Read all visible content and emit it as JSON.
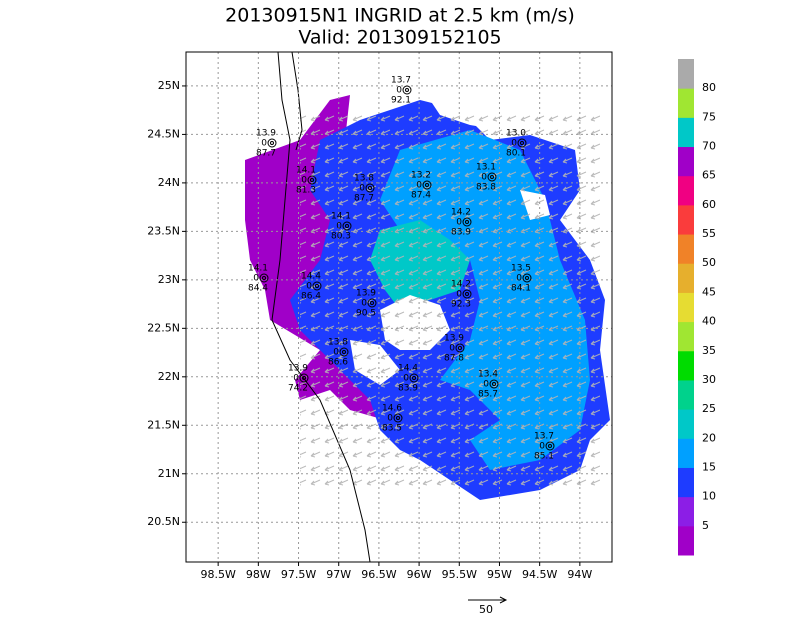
{
  "chart_data": {
    "type": "map",
    "title": "20130915N1 INGRID at 2.5 km (m/s)",
    "subtitle": "Valid: 201309152105",
    "xlim": [
      -98.9,
      -93.6
    ],
    "ylim": [
      20.09,
      25.35
    ],
    "xticks": [
      {
        "value": -98.5,
        "label": "98.5W"
      },
      {
        "value": -98,
        "label": "98W"
      },
      {
        "value": -97.5,
        "label": "97.5W"
      },
      {
        "value": -97,
        "label": "97W"
      },
      {
        "value": -96.5,
        "label": "96.5W"
      },
      {
        "value": -96,
        "label": "96W"
      },
      {
        "value": -95.5,
        "label": "95.5W"
      },
      {
        "value": -95,
        "label": "95W"
      },
      {
        "value": -94.5,
        "label": "94.5W"
      },
      {
        "value": -94,
        "label": "94W"
      }
    ],
    "yticks": [
      {
        "value": 20.5,
        "label": "20.5N"
      },
      {
        "value": 21,
        "label": "21N"
      },
      {
        "value": 21.5,
        "label": "21.5N"
      },
      {
        "value": 22,
        "label": "22N"
      },
      {
        "value": 22.5,
        "label": "22.5N"
      },
      {
        "value": 23,
        "label": "23N"
      },
      {
        "value": 23.5,
        "label": "23.5N"
      },
      {
        "value": 24,
        "label": "24N"
      },
      {
        "value": 24.5,
        "label": "24.5N"
      },
      {
        "value": 25,
        "label": "25N"
      }
    ],
    "grid": true,
    "colorbar": {
      "ticks": [
        5,
        10,
        15,
        20,
        25,
        30,
        35,
        40,
        45,
        50,
        55,
        60,
        65,
        70,
        75,
        80
      ],
      "colors": [
        "#a000c8",
        "#8c1ee6",
        "#1e3cff",
        "#00a0ff",
        "#00c8c8",
        "#00d28c",
        "#00dc00",
        "#a0e632",
        "#e6dc32",
        "#e6af2d",
        "#f08228",
        "#fa3c3c",
        "#f00082",
        "#a000c8",
        "#00c8c8",
        "#a0e632",
        "#aaaaaa"
      ]
    },
    "scale_label": "50",
    "sondes": [
      {
        "top": "13.7",
        "mid": "0",
        "bottom": "92.1"
      },
      {
        "top": "13.9",
        "mid": "0",
        "bottom": "87.7"
      },
      {
        "top": "13.0",
        "mid": "0",
        "bottom": "80.1"
      },
      {
        "top": "14.1",
        "mid": "0",
        "bottom": "81.3"
      },
      {
        "top": "13.8",
        "mid": "0",
        "bottom": "87.7"
      },
      {
        "top": "13.2",
        "mid": "0",
        "bottom": "87.4"
      },
      {
        "top": "13.1",
        "mid": "0",
        "bottom": "83.8"
      },
      {
        "top": "14.2",
        "mid": "0",
        "bottom": "83.9"
      },
      {
        "top": "14.1",
        "mid": "0",
        "bottom": "80.3"
      },
      {
        "top": "14.1",
        "mid": "0",
        "bottom": "84.4"
      },
      {
        "top": "14.4",
        "mid": "0",
        "bottom": "86.4"
      },
      {
        "top": "13.5",
        "mid": "0",
        "bottom": "84.1"
      },
      {
        "top": "13.9",
        "mid": "0",
        "bottom": "90.5"
      },
      {
        "top": "14.2",
        "mid": "0",
        "bottom": "92.3"
      },
      {
        "top": "13.8",
        "mid": "0",
        "bottom": "86.6"
      },
      {
        "top": "13.9",
        "mid": "0",
        "bottom": "87.8"
      },
      {
        "top": "13.9",
        "mid": "0",
        "bottom": "74.2"
      },
      {
        "top": "14.4",
        "mid": "0",
        "bottom": "83.9"
      },
      {
        "top": "13.4",
        "mid": "0",
        "bottom": "85.7"
      },
      {
        "top": "14.6",
        "mid": "0",
        "bottom": "83.5"
      },
      {
        "top": "13.7",
        "mid": "0",
        "bottom": "85.1"
      }
    ]
  }
}
